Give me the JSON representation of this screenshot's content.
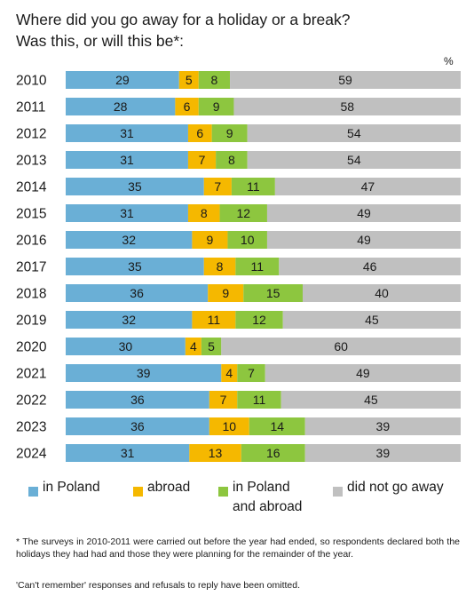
{
  "title_line1": "Where did you go away for a holiday or a break?",
  "title_line2": "Was this, or will this be*:",
  "unit_label": "%",
  "chart_data": {
    "type": "bar",
    "orientation": "horizontal",
    "stacked": true,
    "xlim": [
      0,
      100
    ],
    "grid": false,
    "legend_position": "bottom",
    "categories": [
      "2010",
      "2011",
      "2012",
      "2013",
      "2014",
      "2015",
      "2016",
      "2017",
      "2018",
      "2019",
      "2020",
      "2021",
      "2022",
      "2023",
      "2024"
    ],
    "series": [
      {
        "name": "in Poland",
        "color": "#6aafd6",
        "values": [
          29,
          28,
          31,
          31,
          35,
          31,
          32,
          35,
          36,
          32,
          30,
          39,
          36,
          36,
          31
        ]
      },
      {
        "name": "abroad",
        "color": "#f5b800",
        "values": [
          5,
          6,
          6,
          7,
          7,
          8,
          9,
          8,
          9,
          11,
          4,
          4,
          7,
          10,
          13
        ]
      },
      {
        "name": "in Poland and abroad",
        "color": "#8dc63f",
        "values": [
          8,
          9,
          9,
          8,
          11,
          12,
          10,
          11,
          15,
          12,
          5,
          7,
          11,
          14,
          16
        ]
      },
      {
        "name": "did not go away",
        "color": "#c0c0c0",
        "values": [
          59,
          58,
          54,
          54,
          47,
          49,
          49,
          46,
          40,
          45,
          60,
          49,
          45,
          39,
          39
        ]
      }
    ]
  },
  "legend": {
    "in_poland": "in Poland",
    "abroad": "abroad",
    "in_poland_and_abroad_line1": "in Poland",
    "in_poland_and_abroad_line2": "and abroad",
    "did_not_go_away": "did not go away"
  },
  "footnote": "* The surveys in 2010-2011 were carried out before the year had ended, so respondents declared both the holidays they had had and those they were planning for the remainder of the year.",
  "footnote2": "'Can't remember' responses and refusals to reply have been omitted."
}
